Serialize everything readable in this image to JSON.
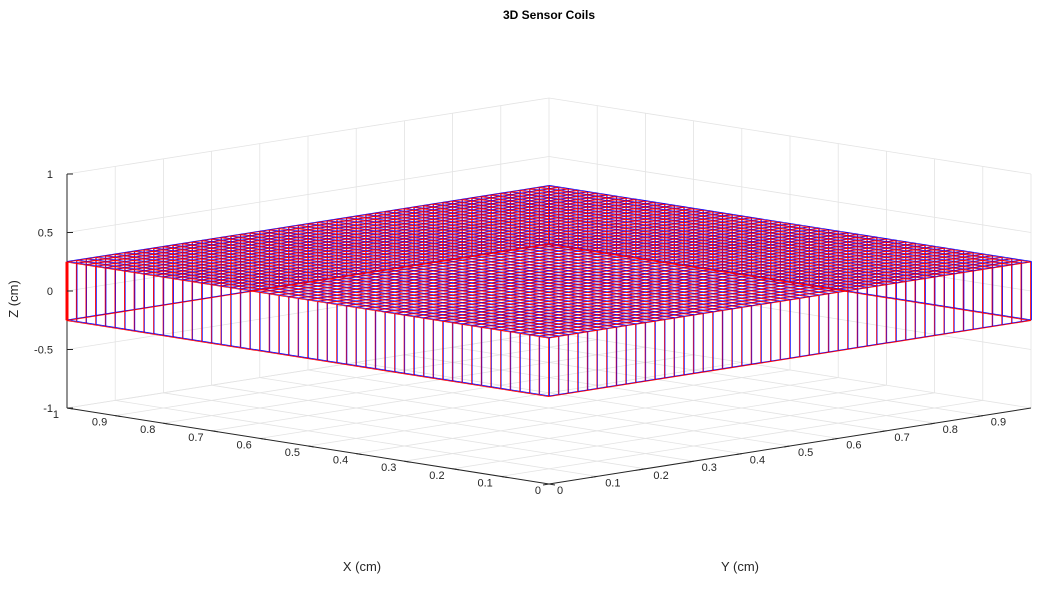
{
  "chart_data": {
    "type": "wireframe-3d",
    "title": "3D Sensor Coils",
    "xlabel": "X (cm)",
    "ylabel": "Y (cm)",
    "zlabel": "Z (cm)",
    "xlim": [
      0,
      1
    ],
    "ylim": [
      0,
      1
    ],
    "zlim": [
      -1,
      1
    ],
    "x_ticks": [
      "0",
      "0.1",
      "0.2",
      "0.3",
      "0.4",
      "0.5",
      "0.6",
      "0.7",
      "0.8",
      "0.9",
      "1"
    ],
    "y_ticks": [
      "0",
      "0.1",
      "0.2",
      "0.3",
      "0.4",
      "0.5",
      "0.6",
      "0.7",
      "0.8",
      "0.9"
    ],
    "z_ticks": [
      "-1",
      "-0.5",
      "0",
      "0.5",
      "1"
    ],
    "grid": true,
    "view": {
      "azimuth_deg": 45,
      "elevation_deg": 30
    },
    "series": [
      {
        "color": "#0000ff",
        "x_range": [
          0,
          1
        ],
        "y_range": [
          0,
          1
        ],
        "z_top": 0.25,
        "z_bottom": -0.25,
        "divisions": 50
      },
      {
        "color": "#ff0000",
        "x_range": [
          0,
          1
        ],
        "y_range": [
          0,
          1
        ],
        "z_top": 0.25,
        "z_bottom": -0.25,
        "divisions": 50
      }
    ]
  }
}
